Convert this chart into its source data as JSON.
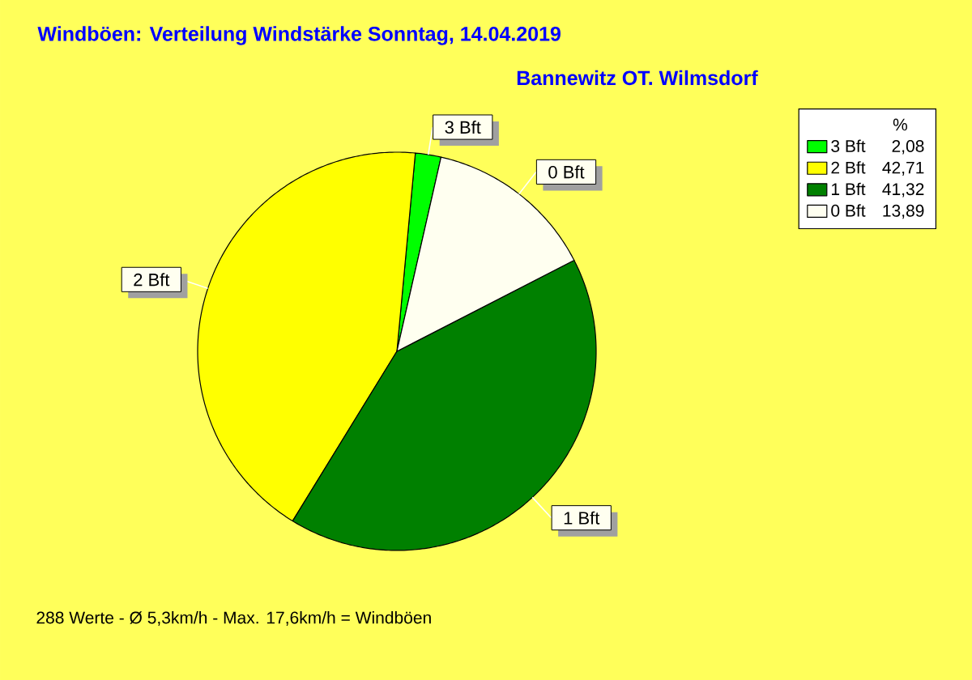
{
  "chart_data": {
    "type": "pie",
    "title": "Windböen: Verteilung Windstärke Sonntag, 14.04.2019",
    "subtitle": "Bannewitz OT. Wilmsdorf",
    "categories": [
      "3 Bft",
      "2 Bft",
      "1 Bft",
      "0 Bft"
    ],
    "values": [
      2.08,
      42.71,
      41.32,
      13.89
    ],
    "value_labels": [
      "2,08",
      "42,71",
      "41,32",
      "13,89"
    ],
    "colors": [
      "#00ff00",
      "#ffff00",
      "#008000",
      "#fffff0"
    ],
    "legend": "top right",
    "legend_title": "%",
    "annotations": [
      "288 Werte - Ø 5,3km/h - Max. 17,6km/h = Windböen"
    ]
  }
}
